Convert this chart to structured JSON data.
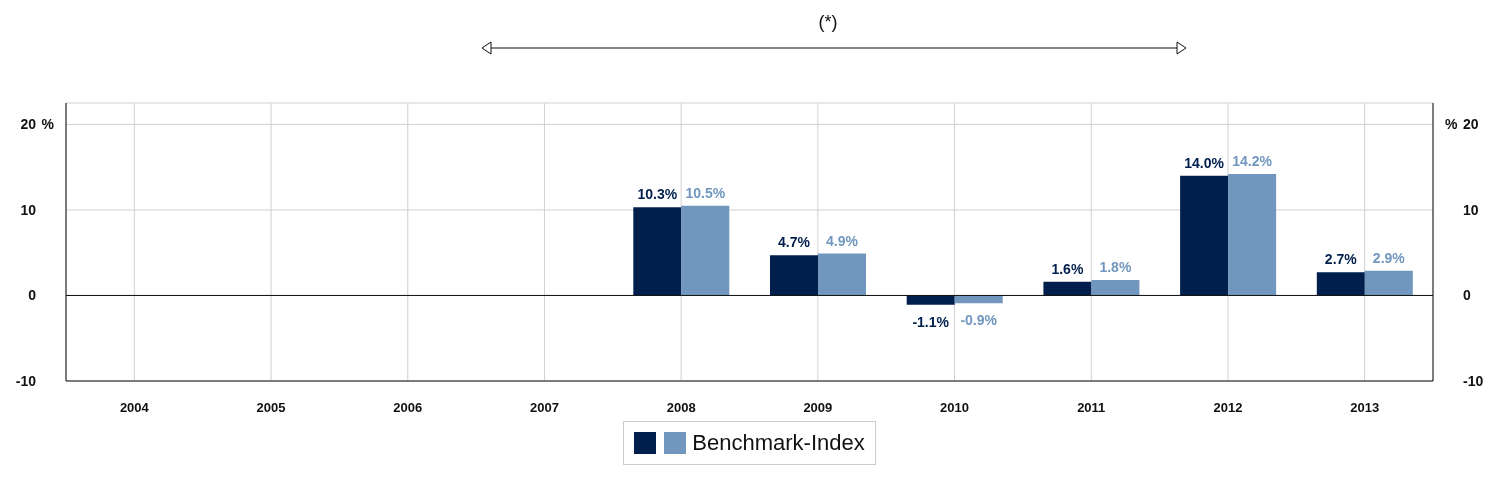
{
  "chart_data": {
    "type": "bar",
    "annotations": [
      "(*)"
    ],
    "categories": [
      "2004",
      "2005",
      "2006",
      "2007",
      "2008",
      "2009",
      "2010",
      "2011",
      "2012",
      "2013"
    ],
    "series": [
      {
        "color": "#001f4d",
        "values": [
          null,
          null,
          null,
          null,
          10.3,
          4.7,
          -1.1,
          1.6,
          14.0,
          2.7
        ],
        "value_labels": [
          null,
          null,
          null,
          null,
          "10.3%",
          "4.7%",
          "-1.1%",
          "1.6%",
          "14.0%",
          "2.7%"
        ]
      },
      {
        "name": "Benchmark-Index",
        "color": "#7197bf",
        "values": [
          null,
          null,
          null,
          null,
          10.5,
          4.9,
          -0.9,
          1.8,
          14.2,
          2.9
        ],
        "value_labels": [
          null,
          null,
          null,
          null,
          "10.5%",
          "4.9%",
          "-0.9%",
          "1.8%",
          "14.2%",
          "2.9%"
        ]
      }
    ],
    "ylabel": "%",
    "y2label": "%",
    "ylim": [
      -10,
      22.5
    ],
    "yticks": [
      -10,
      0,
      10,
      20
    ],
    "y2lim": [
      -10,
      22.5
    ],
    "y2ticks": [
      -10,
      0,
      10,
      20
    ],
    "grid": true,
    "legend": "bottom"
  }
}
